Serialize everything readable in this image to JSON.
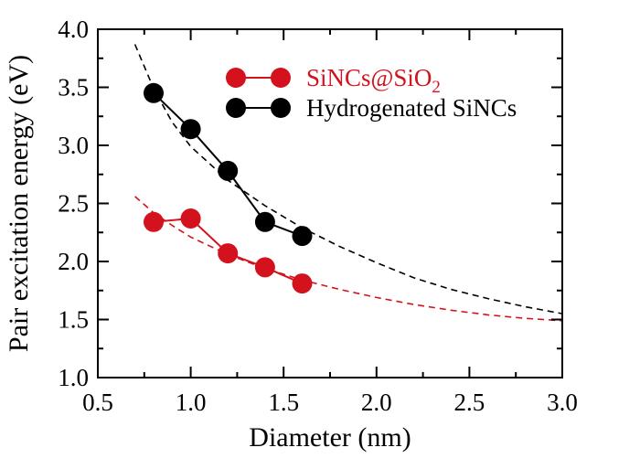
{
  "chart_data": {
    "type": "line",
    "xlabel": "Diameter (nm)",
    "ylabel": "Pair excitation energy (eV)",
    "xlim": [
      0.5,
      3.0
    ],
    "ylim": [
      1.0,
      4.0
    ],
    "xticks": [
      "0.5",
      "1.0",
      "1.5",
      "2.0",
      "2.5",
      "3.0"
    ],
    "yticks": [
      "1.0",
      "1.5",
      "2.0",
      "2.5",
      "3.0",
      "3.5",
      "4.0"
    ],
    "grid": false,
    "legend_position": "top-right",
    "series": [
      {
        "name": "SiNCs@SiO2",
        "name_main": "SiNCs@SiO",
        "name_sub": "2",
        "color": "#d4121e",
        "marker": "circle",
        "x": [
          0.8,
          1.0,
          1.2,
          1.4,
          1.6
        ],
        "y": [
          2.34,
          2.37,
          2.07,
          1.95,
          1.81
        ]
      },
      {
        "name": "Hydrogenated SiNCs",
        "color": "#000000",
        "marker": "circle",
        "x": [
          0.8,
          1.0,
          1.2,
          1.4,
          1.6
        ],
        "y": [
          3.45,
          3.14,
          2.78,
          2.34,
          2.22
        ]
      }
    ],
    "fits": [
      {
        "color": "#000000",
        "style": "dashed",
        "x": [
          0.7,
          0.8,
          0.9,
          1.0,
          1.2,
          1.4,
          1.6,
          1.8,
          2.0,
          2.2,
          2.4,
          2.6,
          2.8,
          3.0
        ],
        "y": [
          3.87,
          3.49,
          3.2,
          2.99,
          2.7,
          2.48,
          2.29,
          2.13,
          1.99,
          1.86,
          1.76,
          1.68,
          1.61,
          1.55
        ]
      },
      {
        "color": "#d4121e",
        "style": "dashed",
        "x": [
          0.7,
          0.8,
          0.9,
          1.0,
          1.2,
          1.4,
          1.6,
          1.8,
          2.0,
          2.2,
          2.4,
          2.6,
          2.8,
          3.0
        ],
        "y": [
          2.56,
          2.42,
          2.31,
          2.21,
          2.06,
          1.94,
          1.84,
          1.76,
          1.69,
          1.63,
          1.58,
          1.54,
          1.51,
          1.49
        ]
      }
    ]
  }
}
